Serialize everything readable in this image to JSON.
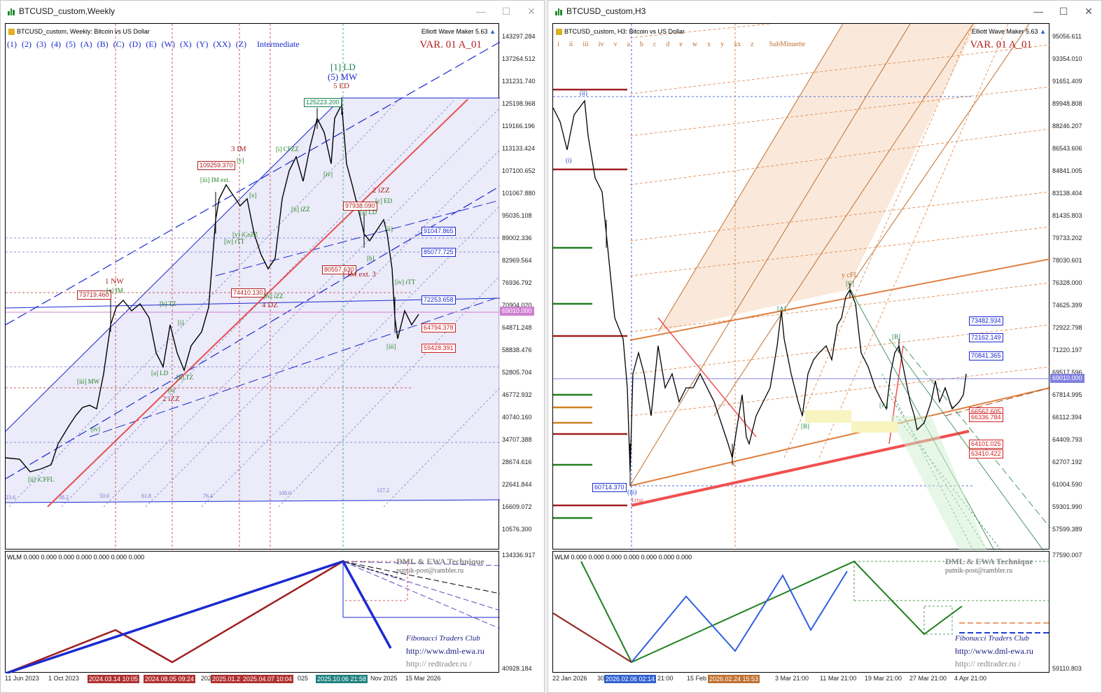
{
  "left": {
    "title": "BTCUSD_custom,Weekly",
    "header": "BTCUSD_custom, Weekly:  Bitcoin vs US Dollar",
    "ewm": "Elliott Wave Maker 5.63",
    "var": "VAR. 01 A_01",
    "degree_buttons": [
      "(1)",
      "(2)",
      "(3)",
      "(4)",
      "(5)",
      "(A)",
      "(B)",
      "(C)",
      "(D)",
      "(E)",
      "(W)",
      "(X)",
      "(Y)",
      "(XX)",
      "(Z)"
    ],
    "degree_name": "Intermediate",
    "price_axis": [
      "143297.284",
      "137264.512",
      "131231.740",
      "125198.968",
      "119166.196",
      "113133.424",
      "107100.652",
      "101067.880",
      "95035.108",
      "89002.336",
      "82969.564",
      "76936.792",
      "70904.020",
      "64871.248",
      "58838.476",
      "52805.704",
      "46772.932",
      "40740.160",
      "34707.388",
      "28674.616",
      "22641.844",
      "16609.072",
      "10576.300"
    ],
    "price_tags": [
      {
        "text": "91047.865",
        "color": "#1a2ad0"
      },
      {
        "text": "85077.725",
        "color": "#1a2ad0"
      },
      {
        "text": "72253.658",
        "color": "#1a2ad0"
      },
      {
        "text": "69010.000",
        "color": "#c060c0"
      },
      {
        "text": "64794.378",
        "color": "#d02020"
      },
      {
        "text": "59428.391",
        "color": "#d02020"
      }
    ],
    "box_labels": [
      "125223.200",
      "109259.370",
      "97938.090",
      "80557.630",
      "74410.130",
      "73719.460"
    ],
    "wave_labels": {
      "ld1": "[1] LD",
      "mw5": "(5) MW",
      "ed5": "5 ED",
      "im3": "3 IM",
      "izz2": "2 iZZ",
      "nw1": "1 NW",
      "im_ext3": "1 IM ext. 3",
      "dz4": "4 DZ",
      "izz2b": "2 iZZ",
      "iCFZZ": "[i] CFZZ",
      "iii_im": "[iii] IM ext.",
      "v": "[v]",
      "x": "[x]",
      "ii_izz": "[ii] iZZ",
      "iv": "[iv]",
      "iv_rtt": "[iv] rTT",
      "iv_zz": "[iv] iZZ",
      "c_ed": "[c] ED",
      "a_ld": "[a] LD",
      "b": "[b]",
      "ii": "[ii]",
      "iv2": "[iv] rTT",
      "iii": "[iii]",
      "b_tz": "[b] TZ",
      "i": "[i]",
      "a_ld2": "[a] LD",
      "ii_tz": "[ii] TZ",
      "c": "[c]",
      "iii_mw": "[iii] MW",
      "iv3": "[iv]",
      "ii_icffl": "[ii] iCFFL",
      "v_im": "[v] IM",
      "y_icezz": "[y] iCeZZ"
    },
    "fib_levels": [
      "23.6",
      "38.2",
      "50.0",
      "61.8",
      "76.4",
      "100.0",
      "127.2"
    ],
    "time_axis": [
      "11 Jun 2023",
      "1 Oct 2023",
      "2024.03.14 10:05",
      "2024.08.05 09:24",
      "202",
      "2025.01.2",
      "2025.04.07 10:04",
      "025",
      "2025.10.06 21:58",
      "Nov 2025",
      "15 Mar 2026"
    ],
    "wlm": "WLM 0.000 0.000 0.000 0.000 0.000 0.000 0.000",
    "wlm_axis": [
      "134336.917",
      "40928.184"
    ],
    "credits": [
      "DML & EWA Technique",
      "putnik-post@rambler.ru",
      "Fibonacci   Traders   Club",
      "http://www.dml-ewa.ru",
      "http:// redtrader.ru /"
    ]
  },
  "right": {
    "title": "BTCUSD_custom,H3",
    "header": "BTCUSD_custom, H3:  Bitcoin vs US Dollar",
    "ewm": "Elliott Wave Maker 5.63",
    "var": "VAR. 01 A_01",
    "degree_buttons": [
      "i",
      "ii",
      "iii",
      "iv",
      "v",
      "a",
      "b",
      "c",
      "d",
      "e",
      "w",
      "x",
      "y",
      "xx",
      "z"
    ],
    "degree_name": "SubMinuette",
    "price_axis": [
      "95056.611",
      "93354.010",
      "91651.409",
      "89948.808",
      "88246.207",
      "86543.606",
      "84841.005",
      "83138.404",
      "81435.803",
      "79733.202",
      "78030.601",
      "76328.000",
      "74625.399",
      "72922.798",
      "71220.197",
      "69517.596",
      "67814.995",
      "66112.394",
      "64409.793",
      "62707.192",
      "61004.590",
      "59301.990",
      "57599.389"
    ],
    "price_tags": [
      {
        "text": "73482.934",
        "color": "#1a2ad0"
      },
      {
        "text": "72162.149",
        "color": "#1a2ad0"
      },
      {
        "text": "70841.365",
        "color": "#1a2ad0"
      },
      {
        "text": "69010.000",
        "color": "#8080e0"
      },
      {
        "text": "66562.605",
        "color": "#d02020"
      },
      {
        "text": "66336.784",
        "color": "#d02020"
      },
      {
        "text": "64101.025",
        "color": "#d02020"
      },
      {
        "text": "63410.422",
        "color": "#d02020"
      }
    ],
    "low_tag": "60714.370",
    "wave_labels": {
      "ycfl": "y cFL",
      "ii_top": "(ii)",
      "i_low": "(i)",
      "iii_low": "(iii)",
      "a": "[A]",
      "b": "[B]",
      "c": "[C]",
      "a2": "[A]",
      "b2": "[B]",
      "x": "x",
      "error": "Error"
    },
    "time_axis": [
      "22 Jan 2026",
      "30",
      "2026.02.06 02:14",
      "21:00",
      "15 Feb",
      "2026.02.24 15:53",
      "3 Mar 21:00",
      "11 Mar 21:00",
      "19 Mar 21:00",
      "27 Mar 21:00",
      "4 Apr 21:00"
    ],
    "wlm": "WLM 0.000 0.000 0.000 0.000 0.000 0.000 0.000",
    "wlm_axis": [
      "77590.007",
      "59110.803"
    ],
    "credits": [
      "DML & EWA Technique",
      "putnik-post@rambler.ru",
      "Fibonacci   Traders   Club",
      "http://www.dml-ewa.ru",
      "http:// redtrader.ru /"
    ],
    "colors": {
      "accent": "#e08040",
      "price_line": "#8080e0"
    }
  }
}
